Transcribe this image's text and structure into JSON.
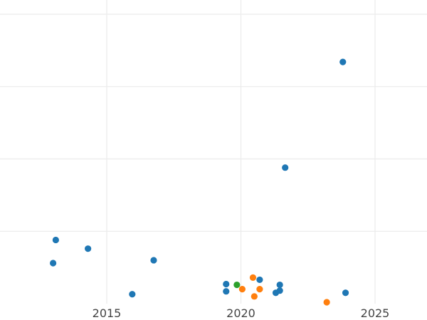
{
  "chart_data": {
    "type": "scatter",
    "title": "",
    "xlabel": "",
    "ylabel": "",
    "xlim": [
      2011.0,
      2027.0
    ],
    "ylim": [
      0,
      4
    ],
    "x_ticks": [
      2015,
      2020,
      2025
    ],
    "x_tick_labels": [
      "2015",
      "2020",
      "2025"
    ],
    "y_gridlines": [
      1,
      2,
      3,
      4
    ],
    "grid": true,
    "legend": null,
    "series": [
      {
        "color": "#1f77b4",
        "points": [
          {
            "x": 2013.1,
            "y": 0.88
          },
          {
            "x": 2013.0,
            "y": 0.56
          },
          {
            "x": 2014.3,
            "y": 0.76
          },
          {
            "x": 2015.95,
            "y": 0.13
          },
          {
            "x": 2016.75,
            "y": 0.6
          },
          {
            "x": 2019.45,
            "y": 0.27
          },
          {
            "x": 2019.45,
            "y": 0.17
          },
          {
            "x": 2020.7,
            "y": 0.33
          },
          {
            "x": 2021.3,
            "y": 0.15
          },
          {
            "x": 2021.45,
            "y": 0.26
          },
          {
            "x": 2021.45,
            "y": 0.18
          },
          {
            "x": 2021.65,
            "y": 1.88
          },
          {
            "x": 2023.8,
            "y": 3.34
          },
          {
            "x": 2023.9,
            "y": 0.15
          }
        ]
      },
      {
        "color": "#ff7f0e",
        "points": [
          {
            "x": 2020.05,
            "y": 0.2
          },
          {
            "x": 2020.45,
            "y": 0.36
          },
          {
            "x": 2020.5,
            "y": 0.1
          },
          {
            "x": 2020.7,
            "y": 0.2
          },
          {
            "x": 2023.2,
            "y": 0.02
          }
        ]
      },
      {
        "color": "#2ca02c",
        "points": [
          {
            "x": 2019.85,
            "y": 0.26
          }
        ]
      }
    ]
  }
}
